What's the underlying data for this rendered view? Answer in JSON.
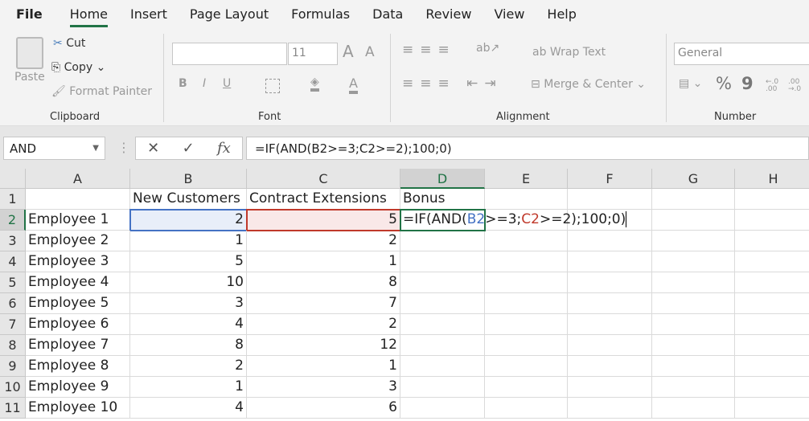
{
  "menu": {
    "tabs": [
      "File",
      "Home",
      "Insert",
      "Page Layout",
      "Formulas",
      "Data",
      "Review",
      "View",
      "Help"
    ],
    "active": "Home"
  },
  "ribbon": {
    "clipboard": {
      "paste": "Paste",
      "cut": "Cut",
      "copy": "Copy",
      "format_painter": "Format Painter",
      "label": "Clipboard"
    },
    "font": {
      "font_name": "",
      "font_size": "11",
      "bold": "B",
      "italic": "I",
      "underline": "U",
      "grow": "A",
      "shrink": "A",
      "color": "A",
      "label": "Font"
    },
    "alignment": {
      "wrap_text": "Wrap Text",
      "merge_center": "Merge & Center",
      "label": "Alignment"
    },
    "number": {
      "format": "General",
      "percent": "%",
      "comma": "9",
      "inc_decimal": "←.0 .00",
      "dec_decimal": ".00 →.0",
      "label": "Number"
    }
  },
  "formula_bar": {
    "name_box": "AND",
    "formula": "=IF(AND(B2>=3;C2>=2);100;0)",
    "cancel": "✕",
    "enter": "✓",
    "fx": "fx"
  },
  "sheet": {
    "columns": [
      "A",
      "B",
      "C",
      "D",
      "E",
      "F",
      "G",
      "H"
    ],
    "rows": [
      [
        "",
        "New Customers",
        "Contract Extensions",
        "Bonus"
      ],
      [
        "Employee 1",
        "2",
        "5",
        ""
      ],
      [
        "Employee 2",
        "1",
        "2",
        ""
      ],
      [
        "Employee 3",
        "5",
        "1",
        ""
      ],
      [
        "Employee 4",
        "10",
        "8",
        ""
      ],
      [
        "Employee 5",
        "3",
        "7",
        ""
      ],
      [
        "Employee 6",
        "4",
        "2",
        ""
      ],
      [
        "Employee 7",
        "8",
        "12",
        ""
      ],
      [
        "Employee 8",
        "2",
        "1",
        ""
      ],
      [
        "Employee 9",
        "1",
        "3",
        ""
      ],
      [
        "Employee 10",
        "4",
        "6",
        ""
      ]
    ],
    "editing": {
      "parts": [
        "=IF(AND(",
        "B2",
        ">=3;",
        "C2",
        ">=2)",
        ";100;0)"
      ]
    },
    "colors": {
      "ref_b": "#4472c4",
      "ref_c": "#c0392b",
      "active": "#217346"
    }
  }
}
